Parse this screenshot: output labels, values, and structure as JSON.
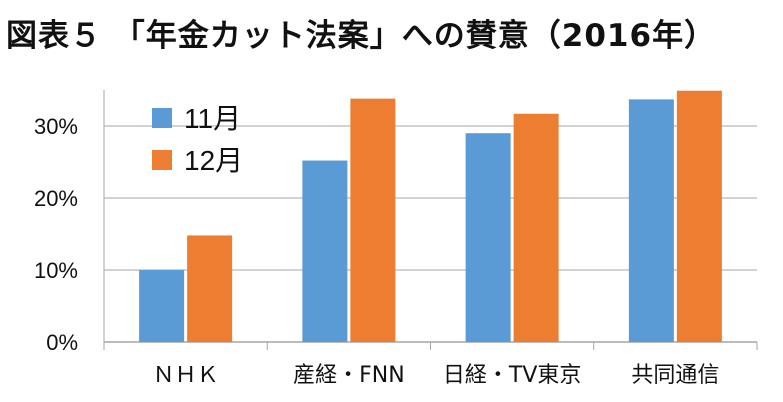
{
  "chart_data": {
    "type": "bar",
    "title": "図表５ 「年金カット法案」への賛意（2016年）",
    "categories": [
      "ＮＨＫ",
      "産経・FNN",
      "日経・TV東京",
      "共同通信"
    ],
    "series": [
      {
        "name": "11月",
        "values": [
          10.0,
          25.2,
          29.0,
          33.7
        ]
      },
      {
        "name": "12月",
        "values": [
          14.8,
          33.8,
          31.7,
          34.9
        ]
      }
    ],
    "yticks": [
      "0%",
      "10%",
      "20%",
      "30%"
    ],
    "ylim": [
      0,
      35
    ],
    "grid": true,
    "legend_position": "top-left",
    "colors": {
      "11月": "#5b9bd5",
      "12月": "#ed7d31",
      "grid": "#a6a6a6"
    }
  }
}
